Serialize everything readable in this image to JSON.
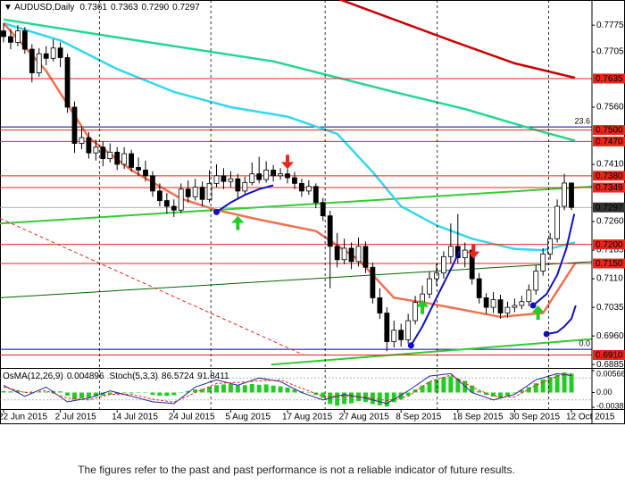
{
  "chart_data": {
    "type": "candlestick",
    "title": "AUDUSD,Daily",
    "last_bar_labels": [
      "0.7361",
      "0.7363",
      "0.7290",
      "0.7297"
    ],
    "up_color": "#ffffff",
    "down_color": "#000000",
    "ylim": [
      0.6876,
      0.7841
    ],
    "yticks": [
      0.7775,
      0.7705,
      {
        "value": 0.756,
        "label": "0.7560"
      },
      {
        "value": 0.741,
        "label": "0.7410"
      },
      {
        "value": 0.726,
        "label": "0.7260"
      },
      0.7185,
      {
        "value": 0.711,
        "label": "0.7110"
      },
      0.7035,
      {
        "value": 0.696,
        "label": "0.6960"
      },
      0.6885
    ],
    "x_labels": [
      {
        "index": 0,
        "label": "22 Jun 2015"
      },
      {
        "index": 8,
        "label": "2 Jul 2015"
      },
      {
        "index": 16,
        "label": "14 Jul 2015"
      },
      {
        "index": 24,
        "label": "24 Jul 2015"
      },
      {
        "index": 32,
        "label": "5 Aug 2015"
      },
      {
        "index": 40,
        "label": "17 Aug 2015"
      },
      {
        "index": 48,
        "label": "27 Aug 2015"
      },
      {
        "index": 56,
        "label": "8 Sep 2015"
      },
      {
        "index": 64,
        "label": "18 Sep 2015"
      },
      {
        "index": 72,
        "label": "30 Sep 2015"
      },
      {
        "index": 80,
        "label": "12 Oct 2015"
      }
    ],
    "grid_x": [
      13.5,
      29.2,
      45.3,
      61.1,
      76.8
    ],
    "candles": [
      [
        0.776,
        0.778,
        0.773,
        0.7745
      ],
      [
        0.7745,
        0.7765,
        0.7712,
        0.773
      ],
      [
        0.773,
        0.7775,
        0.772,
        0.776
      ],
      [
        0.776,
        0.777,
        0.77,
        0.7712
      ],
      [
        0.7712,
        0.7725,
        0.7625,
        0.765
      ],
      [
        0.765,
        0.7715,
        0.764,
        0.77
      ],
      [
        0.77,
        0.772,
        0.767,
        0.7688
      ],
      [
        0.7688,
        0.7738,
        0.768,
        0.7715
      ],
      [
        0.7715,
        0.773,
        0.7665,
        0.769
      ],
      [
        0.769,
        0.77,
        0.7545,
        0.756
      ],
      [
        0.756,
        0.7575,
        0.744,
        0.7465
      ],
      [
        0.7465,
        0.751,
        0.745,
        0.748
      ],
      [
        0.748,
        0.7495,
        0.7425,
        0.744
      ],
      [
        0.744,
        0.7475,
        0.742,
        0.7455
      ],
      [
        0.7455,
        0.747,
        0.7405,
        0.7425
      ],
      [
        0.7425,
        0.7465,
        0.7415,
        0.7442
      ],
      [
        0.7442,
        0.7455,
        0.7395,
        0.741
      ],
      [
        0.741,
        0.7455,
        0.7398,
        0.7438
      ],
      [
        0.7438,
        0.7448,
        0.739,
        0.7402
      ],
      [
        0.7402,
        0.7428,
        0.738,
        0.7395
      ],
      [
        0.7395,
        0.742,
        0.7365,
        0.738
      ],
      [
        0.738,
        0.7392,
        0.7325,
        0.734
      ],
      [
        0.734,
        0.736,
        0.73,
        0.7315
      ],
      [
        0.7315,
        0.7335,
        0.728,
        0.73
      ],
      [
        0.73,
        0.7318,
        0.7272,
        0.729
      ],
      [
        0.729,
        0.736,
        0.7282,
        0.7345
      ],
      [
        0.7345,
        0.7368,
        0.731,
        0.7325
      ],
      [
        0.7325,
        0.7372,
        0.7315,
        0.735
      ],
      [
        0.735,
        0.7365,
        0.73,
        0.7318
      ],
      [
        0.7318,
        0.7395,
        0.731,
        0.736
      ],
      [
        0.736,
        0.741,
        0.735,
        0.738
      ],
      [
        0.738,
        0.74,
        0.7345,
        0.7365
      ],
      [
        0.7365,
        0.7392,
        0.735,
        0.7372
      ],
      [
        0.7372,
        0.7385,
        0.732,
        0.734
      ],
      [
        0.734,
        0.7378,
        0.7328,
        0.7362
      ],
      [
        0.7362,
        0.7415,
        0.7355,
        0.7385
      ],
      [
        0.7385,
        0.743,
        0.736,
        0.737
      ],
      [
        0.737,
        0.7418,
        0.7362,
        0.7395
      ],
      [
        0.7395,
        0.7408,
        0.7365,
        0.738
      ],
      [
        0.738,
        0.74,
        0.737,
        0.7385
      ],
      [
        0.7385,
        0.7398,
        0.736,
        0.7375
      ],
      [
        0.7375,
        0.739,
        0.7345,
        0.736
      ],
      [
        0.736,
        0.7372,
        0.7325,
        0.734
      ],
      [
        0.734,
        0.7368,
        0.733,
        0.7352
      ],
      [
        0.7352,
        0.736,
        0.7295,
        0.731
      ],
      [
        0.731,
        0.7322,
        0.7262,
        0.7275
      ],
      [
        0.7275,
        0.7288,
        0.7085,
        0.7195
      ],
      [
        0.7195,
        0.723,
        0.714,
        0.716
      ],
      [
        0.716,
        0.7215,
        0.7148,
        0.719
      ],
      [
        0.719,
        0.7205,
        0.7135,
        0.7155
      ],
      [
        0.7155,
        0.7218,
        0.7142,
        0.7195
      ],
      [
        0.7195,
        0.7208,
        0.7125,
        0.714
      ],
      [
        0.714,
        0.7152,
        0.7045,
        0.706
      ],
      [
        0.706,
        0.7085,
        0.7005,
        0.702
      ],
      [
        0.702,
        0.7035,
        0.692,
        0.6945
      ],
      [
        0.6945,
        0.7,
        0.693,
        0.6975
      ],
      [
        0.6975,
        0.6992,
        0.6932,
        0.695
      ],
      [
        0.695,
        0.7018,
        0.694,
        0.7
      ],
      [
        0.7,
        0.7065,
        0.699,
        0.7048
      ],
      [
        0.7048,
        0.7092,
        0.703,
        0.707
      ],
      [
        0.707,
        0.7128,
        0.7058,
        0.711
      ],
      [
        0.711,
        0.715,
        0.7092,
        0.7125
      ],
      [
        0.7125,
        0.7182,
        0.711,
        0.7168
      ],
      [
        0.7168,
        0.7255,
        0.715,
        0.7195
      ],
      [
        0.7195,
        0.728,
        0.715,
        0.7165
      ],
      [
        0.7165,
        0.7205,
        0.714,
        0.7185
      ],
      [
        0.7185,
        0.7195,
        0.7095,
        0.711
      ],
      [
        0.711,
        0.7125,
        0.7045,
        0.706
      ],
      [
        0.706,
        0.7072,
        0.7018,
        0.7035
      ],
      [
        0.7035,
        0.7075,
        0.702,
        0.7055
      ],
      [
        0.7055,
        0.7068,
        0.7005,
        0.702
      ],
      [
        0.702,
        0.705,
        0.7008,
        0.7035
      ],
      [
        0.7035,
        0.7058,
        0.7022,
        0.704
      ],
      [
        0.704,
        0.7065,
        0.703,
        0.705
      ],
      [
        0.705,
        0.7095,
        0.7038,
        0.708
      ],
      [
        0.708,
        0.7145,
        0.7068,
        0.713
      ],
      [
        0.713,
        0.719,
        0.7118,
        0.7175
      ],
      [
        0.7175,
        0.723,
        0.716,
        0.7215
      ],
      [
        0.7215,
        0.7318,
        0.7205,
        0.73
      ],
      [
        0.73,
        0.7385,
        0.729,
        0.7361
      ],
      [
        0.7361,
        0.7363,
        0.729,
        0.7297
      ]
    ],
    "moving_averages": [
      {
        "color": "#cc0000",
        "width": 2.5,
        "points": [
          [
            47,
            0.7845
          ],
          [
            55,
            0.779
          ],
          [
            63,
            0.7735
          ],
          [
            72,
            0.7675
          ],
          [
            80.5,
            0.7637
          ]
        ]
      },
      {
        "color": "#20d890",
        "width": 2.5,
        "points": [
          [
            0,
            0.779
          ],
          [
            17,
            0.774
          ],
          [
            38,
            0.768
          ],
          [
            55,
            0.76
          ],
          [
            65,
            0.7555
          ],
          [
            75,
            0.75
          ],
          [
            80.5,
            0.7472
          ]
        ]
      },
      {
        "color": "#30d8f0",
        "width": 2.5,
        "points": [
          [
            0,
            0.778
          ],
          [
            8,
            0.7735
          ],
          [
            16,
            0.766
          ],
          [
            24,
            0.76
          ],
          [
            32,
            0.756
          ],
          [
            40,
            0.7535
          ],
          [
            47,
            0.749
          ],
          [
            52,
            0.739
          ],
          [
            56,
            0.73
          ],
          [
            61,
            0.725
          ],
          [
            66,
            0.7215
          ],
          [
            72,
            0.7188
          ],
          [
            76,
            0.7185
          ],
          [
            80.5,
            0.7205
          ]
        ]
      },
      {
        "color": "#f07050",
        "width": 2.5,
        "points": [
          [
            0,
            0.778
          ],
          [
            6,
            0.7655
          ],
          [
            12,
            0.748
          ],
          [
            18,
            0.7395
          ],
          [
            25,
            0.732
          ],
          [
            30,
            0.729
          ],
          [
            36,
            0.7265
          ],
          [
            44,
            0.7235
          ],
          [
            50,
            0.716
          ],
          [
            55,
            0.706
          ],
          [
            60,
            0.7045
          ],
          [
            70,
            0.701
          ],
          [
            76,
            0.702
          ],
          [
            80.5,
            0.715
          ]
        ]
      }
    ],
    "trend_lines": [
      {
        "color": "#33cc33",
        "width": 2,
        "dash": false,
        "points": [
          [
            -0.5,
            0.7255
          ],
          [
            83,
            0.7352
          ]
        ]
      },
      {
        "color": "#006400",
        "width": 1,
        "dash": false,
        "points": [
          [
            -0.5,
            0.706
          ],
          [
            83,
            0.7155
          ]
        ]
      },
      {
        "color": "#33cc33",
        "width": 2,
        "dash": false,
        "points": [
          [
            37.7,
            0.6885
          ],
          [
            83,
            0.6952
          ]
        ]
      },
      {
        "color": "#e8261b",
        "width": 1,
        "dash": true,
        "points": [
          [
            -0.5,
            0.7268
          ],
          [
            42.3,
            0.691
          ]
        ]
      }
    ],
    "curves": [
      {
        "color": "#1010c0",
        "points": [
          [
            30,
            0.7285
          ],
          [
            32,
            0.731
          ],
          [
            34,
            0.733
          ],
          [
            36,
            0.7345
          ],
          [
            38,
            0.7355
          ]
        ]
      },
      {
        "color": "#1010c0",
        "points": [
          [
            57.4,
            0.6935
          ],
          [
            59,
            0.6985
          ],
          [
            61,
            0.706
          ],
          [
            63,
            0.7135
          ],
          [
            64.3,
            0.7185
          ]
        ]
      },
      {
        "color": "#1010c0",
        "points": [
          [
            74.6,
            0.704
          ],
          [
            76.5,
            0.707
          ],
          [
            78,
            0.712
          ],
          [
            79.3,
            0.719
          ],
          [
            80.4,
            0.728
          ]
        ]
      },
      {
        "color": "#1010c0",
        "points": [
          [
            76.5,
            0.6965
          ],
          [
            78,
            0.697
          ],
          [
            79,
            0.6985
          ],
          [
            80,
            0.7005
          ],
          [
            80.6,
            0.704
          ]
        ]
      }
    ],
    "arrows": [
      {
        "index": 40,
        "value": 0.7435,
        "dir": "down",
        "color": "#e8261b"
      },
      {
        "index": 66.2,
        "value": 0.72,
        "dir": "down",
        "color": "#e8261b"
      },
      {
        "index": 33,
        "value": 0.7275,
        "dir": "up",
        "color": "#22cc22"
      },
      {
        "index": 59,
        "value": 0.7055,
        "dir": "up",
        "color": "#22cc22"
      },
      {
        "index": 75.3,
        "value": 0.704,
        "dir": "up",
        "color": "#22cc22"
      }
    ],
    "levels": [
      {
        "value": 0.7635,
        "label": "0.7635"
      },
      {
        "value": 0.75,
        "label": "0.7500"
      },
      {
        "value": 0.747,
        "label": "0.7470"
      },
      {
        "value": 0.738,
        "label": "0.7380"
      },
      0.7349,
      {
        "value": 0.72,
        "label": "0.7200"
      },
      {
        "value": 0.715,
        "label": "0.7150"
      },
      {
        "value": 0.691,
        "label": "0.6910"
      }
    ],
    "level_color": "#e8261b",
    "current_price": {
      "value": 0.7297,
      "label": "0.7297"
    },
    "fib_levels": [
      {
        "value": 0.7508,
        "label": "23.6"
      },
      {
        "value": 0.6925,
        "label": "0.0"
      }
    ],
    "fib_color": "#0000aa",
    "osma": {
      "name": "OsMA(12,26,9)",
      "color": "#22cc22",
      "ylim": [
        -0.00381,
        0.00566
      ],
      "ticks": [
        0.00566,
        {
          "value": 0,
          "label": "0.00"
        },
        -0.00381
      ],
      "values": [
        0.0004,
        0.0003,
        0.0005,
        0.0002,
        -0.0002,
        0.0001,
        0.0002,
        0.0004,
        0.0003,
        -0.0008,
        -0.0018,
        -0.0015,
        -0.0014,
        -0.001,
        -0.0008,
        -0.0005,
        -0.0004,
        -0.0002,
        -0.0002,
        -0.0001,
        -0.0001,
        -0.0006,
        -0.0008,
        -0.0009,
        -0.0007,
        0.0001,
        0.0004,
        0.0008,
        0.0009,
        0.0014,
        0.0019,
        0.0021,
        0.0022,
        0.0018,
        0.0019,
        0.0022,
        0.002,
        0.0021,
        0.0018,
        0.0016,
        0.0013,
        0.0008,
        0.0003,
        0.0001,
        -0.0006,
        -0.0014,
        -0.003,
        -0.0034,
        -0.003,
        -0.0028,
        -0.0022,
        -0.0024,
        -0.003,
        -0.0033,
        -0.0036,
        -0.0025,
        -0.0018,
        -0.0008,
        0.0008,
        0.0018,
        0.0028,
        0.0034,
        0.004,
        0.0042,
        0.0036,
        0.003,
        0.0018,
        0.0004,
        -0.0006,
        -0.001,
        -0.0014,
        -0.0008,
        -0.0002,
        0.0006,
        0.0014,
        0.0024,
        0.0034,
        0.004,
        0.0046,
        0.0052,
        0.004896
      ]
    },
    "stoch": {
      "name": "Stoch(5,3,3)",
      "ylim": [
        0,
        100
      ],
      "levels": [
        20,
        80
      ],
      "main": {
        "color": "#2020a0",
        "points": [
          [
            0,
            60
          ],
          [
            3,
            30
          ],
          [
            6,
            55
          ],
          [
            9,
            15
          ],
          [
            12,
            25
          ],
          [
            15,
            45
          ],
          [
            18,
            30
          ],
          [
            21,
            15
          ],
          [
            24,
            10
          ],
          [
            27,
            55
          ],
          [
            30,
            75
          ],
          [
            33,
            60
          ],
          [
            36,
            80
          ],
          [
            39,
            70
          ],
          [
            42,
            40
          ],
          [
            45,
            20
          ],
          [
            48,
            35
          ],
          [
            51,
            25
          ],
          [
            54,
            10
          ],
          [
            57,
            45
          ],
          [
            60,
            85
          ],
          [
            63,
            92
          ],
          [
            66,
            40
          ],
          [
            69,
            20
          ],
          [
            72,
            35
          ],
          [
            75,
            75
          ],
          [
            78,
            92
          ],
          [
            80,
            86.5724
          ]
        ]
      },
      "signal": {
        "color": "#e8261b",
        "points": [
          [
            0,
            55
          ],
          [
            3,
            40
          ],
          [
            6,
            45
          ],
          [
            9,
            25
          ],
          [
            12,
            20
          ],
          [
            15,
            35
          ],
          [
            18,
            35
          ],
          [
            21,
            22
          ],
          [
            24,
            14
          ],
          [
            27,
            40
          ],
          [
            30,
            65
          ],
          [
            33,
            68
          ],
          [
            36,
            72
          ],
          [
            39,
            75
          ],
          [
            42,
            52
          ],
          [
            45,
            30
          ],
          [
            48,
            30
          ],
          [
            51,
            28
          ],
          [
            54,
            18
          ],
          [
            57,
            30
          ],
          [
            60,
            70
          ],
          [
            63,
            88
          ],
          [
            66,
            55
          ],
          [
            69,
            30
          ],
          [
            72,
            28
          ],
          [
            75,
            60
          ],
          [
            78,
            85
          ],
          [
            80,
            91.8411
          ]
        ]
      }
    }
  },
  "caption": "The figures refer to the past and past performance is not a reliable indicator of future results."
}
